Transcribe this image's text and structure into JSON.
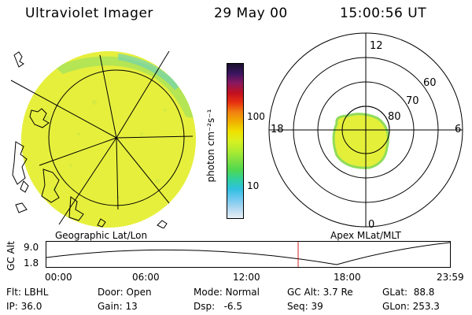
{
  "header": {
    "instrument": "Ultraviolet Imager",
    "date": "29 May 00",
    "time": "15:00:56 UT"
  },
  "panels": {
    "left_label": "Geographic Lat/Lon",
    "right_label": "Apex MLat/MLT"
  },
  "colorbar": {
    "unit_label": "photon cm⁻²s⁻¹",
    "ticks": [
      "100",
      "10"
    ],
    "colors": [
      "#1a0f2e",
      "#3a1560",
      "#8a1860",
      "#c01020",
      "#e83010",
      "#f08010",
      "#f0b000",
      "#f0e000",
      "#d8f020",
      "#b0ec30",
      "#80e040",
      "#50d850",
      "#30d0a0",
      "#30c0e0",
      "#70c8f0",
      "#b0d8f0",
      "#e8eef4"
    ]
  },
  "polar": {
    "mlt_labels": {
      "top": "12",
      "left": "18",
      "right": "6",
      "bottom": "0"
    },
    "lat_labels": [
      "60",
      "70",
      "80"
    ]
  },
  "altitude_plot": {
    "axis_label": "GC Alt",
    "y_ticks": [
      "9.0",
      "1.8"
    ],
    "x_ticks": [
      "00:00",
      "06:00",
      "12:00",
      "18:00",
      "23:59"
    ]
  },
  "status": {
    "flt": "Flt: LBHL",
    "ip": "IP: 36.0",
    "door": "Door: Open",
    "gain": "Gain: 13",
    "mode": "Mode: Normal",
    "dsp": "Dsp:   -6.5",
    "gc_alt": "GC Alt: 3.7 Re",
    "seq": "Seq: 39",
    "glat": "GLat:  88.8",
    "glon": "GLon: 253.3"
  },
  "styles": {
    "aurora_fill": "#e4ef3a",
    "aurora_edge": "#8fdc5a",
    "marker_color": "#d02020"
  }
}
